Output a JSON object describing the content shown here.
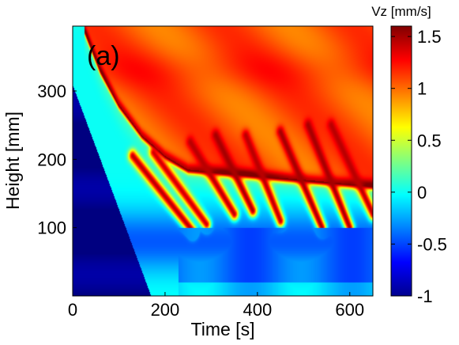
{
  "chart_data": {
    "type": "heatmap",
    "panel_label": "(a)",
    "xlabel": "Time [s]",
    "ylabel": "Height [mm]",
    "xlim": [
      0,
      650
    ],
    "ylim": [
      0,
      395
    ],
    "xticks": [
      0,
      200,
      400,
      600
    ],
    "yticks": [
      100,
      200,
      300
    ],
    "grid": false,
    "colormap": "jet",
    "colorbar": {
      "title": "Vz [mm/s]",
      "range": [
        -1,
        1.6
      ],
      "ticks": [
        -1,
        -0.5,
        0,
        0.5,
        1,
        1.5
      ],
      "position": "right"
    },
    "field_description": "Vertical velocity Vz over time and height",
    "features": {
      "front": [
        [
          25,
          390
        ],
        [
          60,
          330
        ],
        [
          100,
          280
        ],
        [
          150,
          235
        ],
        [
          200,
          205
        ],
        [
          250,
          185
        ]
      ],
      "front_value": 1.55,
      "upper_region_value": 1.05,
      "lower_left_core_value": -1.0,
      "lower_band_value": -0.45,
      "streaks": [
        {
          "x": [
            130,
            260
          ],
          "y": [
            205,
            95
          ],
          "value": 1.45
        },
        {
          "x": [
            175,
            290
          ],
          "y": [
            210,
            105
          ],
          "value": 1.4
        },
        {
          "x": [
            255,
            350
          ],
          "y": [
            225,
            120
          ],
          "value": 1.45
        },
        {
          "x": [
            310,
            390
          ],
          "y": [
            235,
            125
          ],
          "value": 1.5
        },
        {
          "x": [
            375,
            450
          ],
          "y": [
            235,
            110
          ],
          "value": 1.45
        },
        {
          "x": [
            450,
            540
          ],
          "y": [
            240,
            100
          ],
          "value": 1.5
        },
        {
          "x": [
            510,
            600
          ],
          "y": [
            250,
            100
          ],
          "value": 1.5
        },
        {
          "x": [
            560,
            650
          ],
          "y": [
            250,
            120
          ],
          "value": 1.45
        }
      ]
    }
  }
}
